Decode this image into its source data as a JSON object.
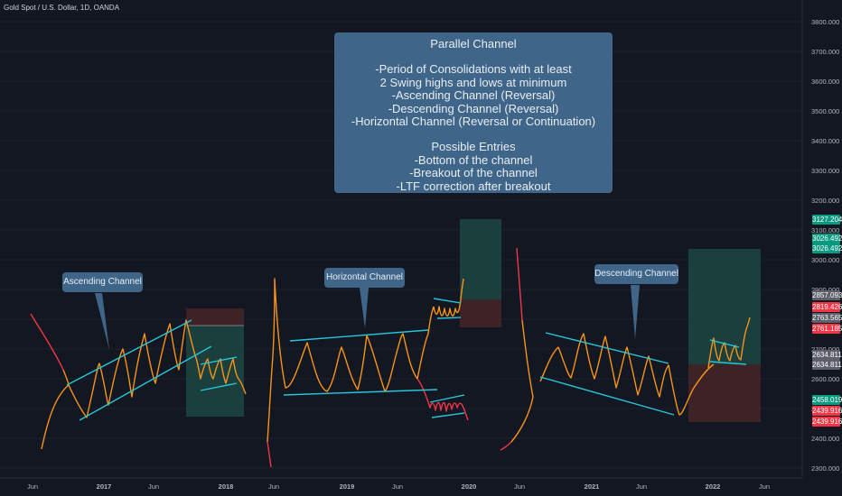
{
  "symbol_title": "Gold Spot / U.S. Dollar, 1D, OANDA",
  "info_box": {
    "title": "Parallel Channel",
    "lines1": [
      "-Period of Consolidations with at least",
      "2 Swing highs and lows at minimum",
      "-Ascending Channel (Reversal)",
      "-Descending Channel (Reversal)",
      "-Horizontal Channel (Reversal or Continuation)"
    ],
    "heading2": "Possible Entries",
    "lines2": [
      "-Bottom of the channel",
      "-Breakout of the channel",
      "-LTF correction after breakout"
    ]
  },
  "callouts": {
    "ascending": "Ascending Channel",
    "horizontal": "Horizontal Channel",
    "descending": "Descending Channel"
  },
  "colors": {
    "background": "#131722",
    "price_line": "#f7931a",
    "price_down": "#f23645",
    "channel": "#26c6da",
    "callout": "#3f6589",
    "profit_zone": "#1b3f3c",
    "loss_zone": "#3d2326"
  },
  "chart_data": {
    "type": "line",
    "title": "",
    "xlabel": "",
    "ylabel": "",
    "ylim": [
      2260,
      3850
    ],
    "x_tick_labels": [
      "Jun",
      "2017",
      "Jun",
      "2018",
      "Jun",
      "2019",
      "Jun",
      "2020",
      "Jun",
      "2021",
      "Jun",
      "2022",
      "Jun"
    ],
    "y_tick_labels": [
      "3800.000",
      "3700.000",
      "3600.000",
      "3500.000",
      "3400.000",
      "3300.000",
      "3200.000",
      "3100.000",
      "3000.000",
      "2900.000",
      "2800.000",
      "2700.000",
      "2600.000",
      "2500.000",
      "2400.000",
      "2300.000"
    ],
    "price_labels": [
      {
        "value": "3127.204",
        "color": "#089981"
      },
      {
        "value": "3026.492",
        "color": "#089981"
      },
      {
        "value": "3026.492",
        "color": "#089981"
      },
      {
        "value": "2857.093",
        "color": "#5d606b"
      },
      {
        "value": "2819.426",
        "color": "#f23645"
      },
      {
        "value": "2763.565",
        "color": "#5d606b"
      },
      {
        "value": "2761.185",
        "color": "#f23645"
      },
      {
        "value": "2634.811",
        "color": "#5d606b"
      },
      {
        "value": "2634.811",
        "color": "#5d606b"
      },
      {
        "value": "2458.019",
        "color": "#089981"
      },
      {
        "value": "2439.916",
        "color": "#f23645"
      },
      {
        "value": "2439.916",
        "color": "#f23645"
      }
    ]
  }
}
